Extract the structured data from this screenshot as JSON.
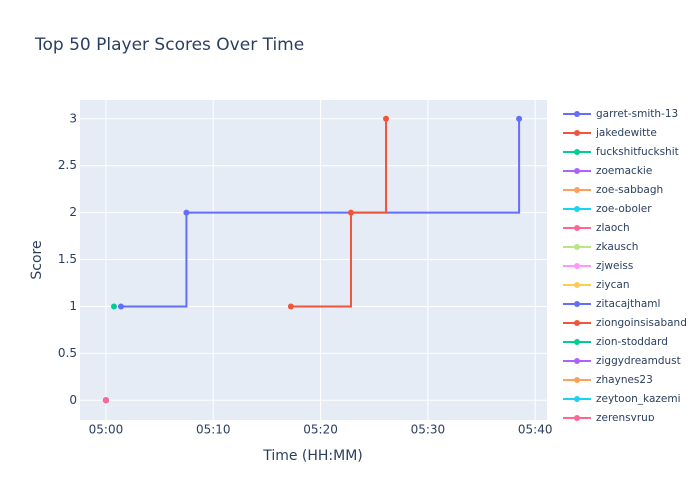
{
  "chart_data": {
    "type": "line",
    "line_shape": "hv",
    "title": "Top 50 Player Scores Over Time",
    "x_label": "Time (HH:MM)",
    "y_label": "Score",
    "xlim": [
      "04:57:35",
      "05:41:06"
    ],
    "xticks": [
      "05:00",
      "05:10",
      "05:20",
      "05:30",
      "05:40"
    ],
    "ylim": [
      -0.21,
      3.2
    ],
    "yticks": [
      0,
      0.5,
      1,
      1.5,
      2,
      2.5,
      3
    ],
    "grid": true,
    "series": [
      {
        "name": "garret-smith-13",
        "color": "#636efa",
        "x": [
          "05:01:24",
          "05:07:30",
          "05:38:30"
        ],
        "values": [
          1,
          2,
          3
        ]
      },
      {
        "name": "jakedewitte",
        "color": "#EF553B",
        "x": [
          "05:17:14",
          "05:22:50",
          "05:26:06"
        ],
        "values": [
          1,
          2,
          3
        ]
      },
      {
        "name": "fuckshitfuckshit",
        "color": "#00cc96",
        "x": [
          "05:00:45"
        ],
        "values": [
          1
        ]
      },
      {
        "name": "zoemackie",
        "color": "#ab63fa",
        "x": [
          "05:00:00"
        ],
        "values": [
          0
        ]
      },
      {
        "name": "zoe-sabbagh",
        "color": "#FFA15A",
        "x": [
          "05:00:00"
        ],
        "values": [
          0
        ]
      },
      {
        "name": "zoe-oboler",
        "color": "#19d3f3",
        "x": [
          "05:00:00"
        ],
        "values": [
          0
        ]
      },
      {
        "name": "zlaoch",
        "color": "#FF6692",
        "x": [
          "05:00:00"
        ],
        "values": [
          0
        ]
      },
      {
        "name": "zkausch",
        "color": "#B6E880",
        "x": [
          "05:00:00"
        ],
        "values": [
          0
        ]
      },
      {
        "name": "zjweiss",
        "color": "#FF97FF",
        "x": [
          "05:00:00"
        ],
        "values": [
          0
        ]
      },
      {
        "name": "ziycan",
        "color": "#FECB52",
        "x": [
          "05:00:00"
        ],
        "values": [
          0
        ]
      },
      {
        "name": "zitacajthaml",
        "color": "#636efa",
        "x": [
          "05:00:00"
        ],
        "values": [
          0
        ]
      },
      {
        "name": "ziongoinsisaband",
        "color": "#EF553B",
        "x": [
          "05:00:00"
        ],
        "values": [
          0
        ]
      },
      {
        "name": "zion-stoddard",
        "color": "#00cc96",
        "x": [
          "05:00:00"
        ],
        "values": [
          0
        ]
      },
      {
        "name": "ziggydreamdust",
        "color": "#ab63fa",
        "x": [
          "05:00:00"
        ],
        "values": [
          0
        ]
      },
      {
        "name": "zhaynes23",
        "color": "#FFA15A",
        "x": [
          "05:00:00"
        ],
        "values": [
          0
        ]
      },
      {
        "name": "zeytoon_kazemi",
        "color": "#19d3f3",
        "x": [
          "05:00:00"
        ],
        "values": [
          0
        ]
      },
      {
        "name": "zerensyrup",
        "color": "#FF6692",
        "x": [
          "05:00:00"
        ],
        "values": [
          0
        ]
      }
    ]
  }
}
